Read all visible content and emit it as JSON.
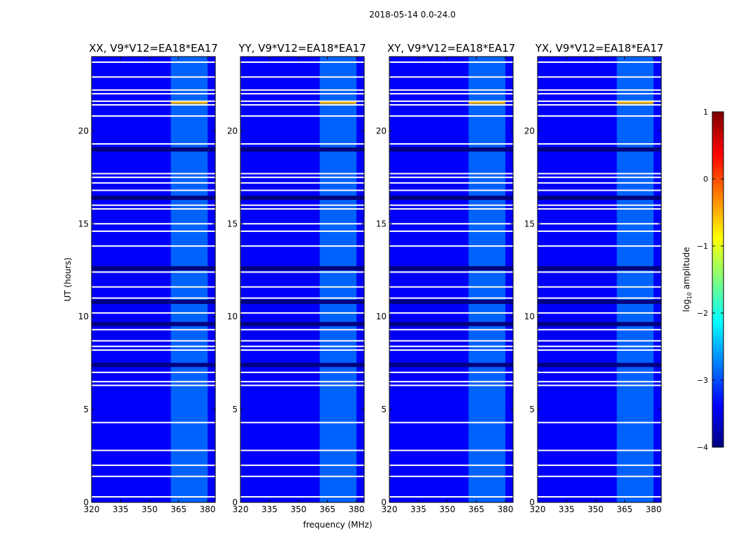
{
  "suptitle": "2018-05-14 0.0-24.0",
  "chart_data": {
    "type": "heatmap",
    "xlabel": "frequency (MHz)",
    "ylabel": "UT (hours)",
    "xlim": [
      320,
      384
    ],
    "ylim": [
      0,
      24
    ],
    "xticks": [
      "320",
      "335",
      "350",
      "365",
      "380"
    ],
    "yticks": [
      "0",
      "5",
      "10",
      "15",
      "20"
    ],
    "panels": [
      {
        "title": "XX, V9*V12=EA18*EA17"
      },
      {
        "title": "YY, V9*V12=EA18*EA17"
      },
      {
        "title": "XY, V9*V12=EA18*EA17"
      },
      {
        "title": "YX, V9*V12=EA18*EA17"
      }
    ],
    "colorbar": {
      "label_prefix": "log",
      "label_sub": "10",
      "label_suffix": " amplitude",
      "range": [
        -4,
        1
      ],
      "ticks": [
        "1",
        "0",
        "−1",
        "−2",
        "−3",
        "−4"
      ],
      "colormap": [
        "#00007f",
        "#0000ff",
        "#007fff",
        "#00ffff",
        "#7fff7f",
        "#ffff00",
        "#ff7f00",
        "#ff0000",
        "#7f0000"
      ]
    },
    "background_level": -3.4,
    "rfi_band_mhz": [
      361,
      380
    ],
    "rfi_level": -2.5,
    "flagged_ut_hours": [
      0.3,
      1.4,
      2.0,
      2.8,
      4.3,
      6.3,
      6.5,
      7.0,
      8.2,
      8.4,
      8.7,
      9.3,
      10.2,
      11.0,
      11.6,
      12.4,
      13.8,
      14.6,
      15.0,
      15.8,
      16.0,
      16.8,
      17.2,
      17.5,
      17.7,
      19.3,
      20.8,
      21.4,
      21.6,
      22.0,
      22.2,
      22.9,
      23.7
    ],
    "dark_ut_hours": [
      7.4,
      9.6,
      10.8,
      12.6,
      16.4,
      19.0
    ],
    "hot_row_ut_hour": 21.5,
    "hot_row_level": -0.5
  }
}
